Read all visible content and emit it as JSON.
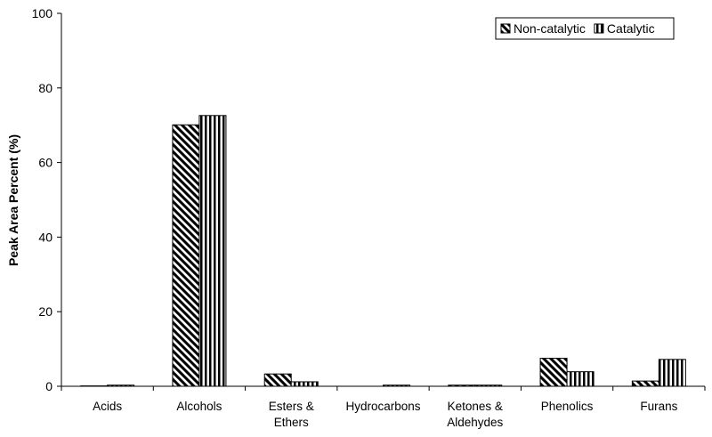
{
  "chart_data": {
    "type": "bar",
    "y_label": "Peak Area Percent (%)",
    "categories": [
      "Acids",
      "Alcohols",
      "Esters & Ethers",
      "Hydrocarbons",
      "Ketones & Aldehydes",
      "Phenolics",
      "Furans"
    ],
    "series": [
      {
        "name": "Non-catalytic",
        "color": "#000000",
        "pattern": "diagonal",
        "values": [
          0.1,
          70.1,
          3.3,
          0,
          0.3,
          7.5,
          1.4
        ]
      },
      {
        "name": "Catalytic",
        "color": "#000000",
        "pattern": "vertical",
        "values": [
          0.3,
          72.6,
          1.2,
          0.3,
          0.3,
          3.9,
          7.2
        ]
      }
    ],
    "ylim": [
      0,
      100
    ],
    "yticks": [
      0,
      20,
      40,
      60,
      80,
      100
    ],
    "grid": false,
    "legend": "upper right"
  }
}
